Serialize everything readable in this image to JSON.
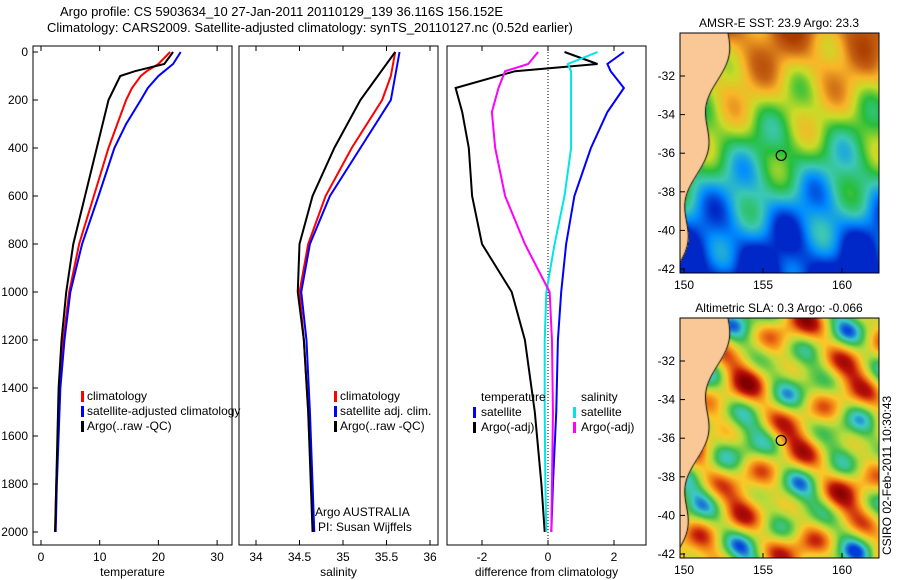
{
  "title_line1": "Argo profile: CS 5903634_10 27-Jan-2011 20110129_139 36.116S 156.152E",
  "title_line2": "Climatology: CARS2009. Satellite-adjusted climatology: synTS_20110127.nc (0.52d earlier)",
  "credit": "CSIRO 02-Feb-2011 10:30:43",
  "owner_line1": "Argo AUSTRALIA",
  "owner_line2": "PI: Susan Wijffels",
  "colors": {
    "climatology": "#ff0000",
    "satellite": "#0000ff",
    "argo": "#000000",
    "sal_satellite": "#00e5e5",
    "sal_argo": "#ff00ff"
  },
  "chart_data": [
    {
      "type": "line",
      "xlabel": "temperature",
      "ylabel": "",
      "xlim": [
        -1,
        31
      ],
      "ylim": [
        2000,
        0
      ],
      "xticks": [
        "0",
        "10",
        "20",
        "30"
      ],
      "yticks": [
        "0",
        "200",
        "400",
        "600",
        "800",
        "1000",
        "1200",
        "1400",
        "1600",
        "1800",
        "2000"
      ],
      "legend": [
        "climatology",
        "satellite-adjusted climatology",
        "Argo(..raw -QC)"
      ],
      "legend_position": "lower-left",
      "depth": [
        0,
        50,
        80,
        100,
        150,
        200,
        300,
        400,
        600,
        800,
        1000,
        1200,
        1400,
        1600,
        1800,
        2000
      ],
      "series": [
        {
          "name": "climatology",
          "values": [
            22,
            20,
            18,
            17,
            15.5,
            14.5,
            13,
            11.5,
            9,
            6.5,
            4.8,
            3.8,
            3.2,
            2.9,
            2.6,
            2.4
          ]
        },
        {
          "name": "satellite-adjusted climatology",
          "values": [
            23.8,
            22.5,
            21,
            20,
            18.2,
            17,
            14.5,
            12.5,
            9.8,
            7,
            5,
            4,
            3.3,
            3,
            2.7,
            2.5
          ]
        },
        {
          "name": "Argo(..raw -QC)",
          "values": [
            22.5,
            21,
            16,
            13.5,
            12.5,
            11.5,
            10.5,
            9.5,
            7.5,
            5.5,
            4.3,
            3.5,
            3,
            2.8,
            2.6,
            2.4
          ]
        }
      ]
    },
    {
      "type": "line",
      "xlabel": "salinity",
      "ylabel": "",
      "xlim": [
        33.8,
        36.1
      ],
      "ylim": [
        2000,
        0
      ],
      "xticks": [
        "34",
        "34.5",
        "35",
        "35.5",
        "36"
      ],
      "legend": [
        "climatology",
        "satellite adj. clim.",
        "Argo(..raw -QC)"
      ],
      "legend_position": "lower-right",
      "depth": [
        0,
        100,
        200,
        400,
        600,
        800,
        1000,
        1200,
        1500,
        2000
      ],
      "series": [
        {
          "name": "climatology",
          "values": [
            35.6,
            35.55,
            35.45,
            35.1,
            34.8,
            34.6,
            34.5,
            34.55,
            34.6,
            34.66
          ]
        },
        {
          "name": "satellite adj. clim.",
          "values": [
            35.65,
            35.6,
            35.55,
            35.2,
            34.85,
            34.62,
            34.52,
            34.58,
            34.62,
            34.67
          ]
        },
        {
          "name": "Argo(..raw -QC)",
          "values": [
            35.6,
            35.4,
            35.2,
            34.9,
            34.65,
            34.5,
            34.48,
            34.55,
            34.6,
            34.65
          ]
        }
      ]
    },
    {
      "type": "line",
      "xlabel": "difference from climatology",
      "ylabel": "",
      "xlim": [
        -3,
        3
      ],
      "ylim": [
        2000,
        0
      ],
      "xticks": [
        "-2",
        "0",
        "2"
      ],
      "legend_groups": [
        {
          "title": "temperature",
          "entries": [
            "satellite",
            "Argo(-adj)"
          ]
        },
        {
          "title": "salinity",
          "entries": [
            "satellite",
            "Argo(-adj)"
          ]
        }
      ],
      "depth": [
        0,
        50,
        80,
        150,
        250,
        400,
        600,
        800,
        1000,
        1200,
        1500,
        1800,
        2000
      ],
      "series": [
        {
          "name": "temperature satellite",
          "values": [
            2.3,
            1.8,
            1.9,
            2.3,
            1.8,
            1.3,
            0.8,
            0.55,
            0.4,
            0.3,
            0.25,
            0.15,
            0.1
          ]
        },
        {
          "name": "temperature Argo(-adj)",
          "values": [
            0.5,
            1.5,
            -1,
            -2.8,
            -2.6,
            -2.4,
            -2.3,
            -2,
            -1.1,
            -0.7,
            -0.4,
            -0.2,
            -0.1
          ]
        },
        {
          "name": "salinity satellite",
          "values": [
            1.5,
            0.6,
            0.7,
            0.7,
            0.7,
            0.7,
            0.5,
            0.2,
            -0.05,
            -0.1,
            -0.1,
            -0.08,
            -0.05
          ]
        },
        {
          "name": "salinity Argo(-adj)",
          "values": [
            -0.3,
            -0.6,
            -1.3,
            -1.5,
            -1.7,
            -1.6,
            -1.3,
            -0.7,
            0.05,
            0.12,
            0.15,
            0.12,
            0.1
          ]
        }
      ]
    },
    {
      "type": "heatmap",
      "title": "AMSR-E SST: 23.9 Argo: 23.3",
      "xticks": [
        "150",
        "155",
        "160"
      ],
      "yticks": [
        "-32",
        "-34",
        "-36",
        "-38",
        "-40",
        "-42"
      ],
      "marker": {
        "lon": 156.152,
        "lat": -36.116
      }
    },
    {
      "type": "heatmap",
      "title": "Altimetric SLA: 0.3 Argo: -0.066",
      "xticks": [
        "150",
        "155",
        "160"
      ],
      "yticks": [
        "-32",
        "-34",
        "-36",
        "-38",
        "-40",
        "-42"
      ],
      "marker": {
        "lon": 156.152,
        "lat": -36.116
      }
    }
  ]
}
